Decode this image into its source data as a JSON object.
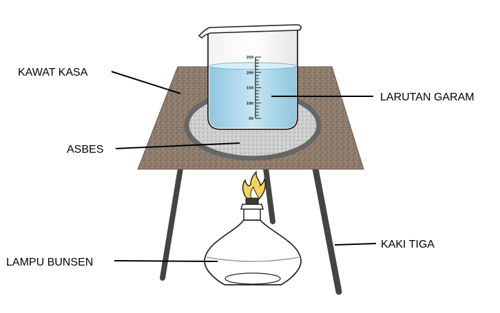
{
  "labels": {
    "kawat_kasa": "KAWAT KASA",
    "asbes": "ASBES",
    "larutan_garam": "LARUTAN GARAM",
    "kaki_tiga": "KAKI TIGA",
    "lampu_bunsen": "LAMPU BUNSEN"
  },
  "beaker_scale": [
    "250",
    "200",
    "150",
    "100",
    "50"
  ],
  "colors": {
    "gauze": "#8a7868",
    "asbestos": "#c9c9c9",
    "asbestos_ring": "#666666",
    "tripod_legs": "#444444",
    "solution": "#a9d8ec",
    "flame": "#f2c233",
    "lines": "#000000"
  }
}
